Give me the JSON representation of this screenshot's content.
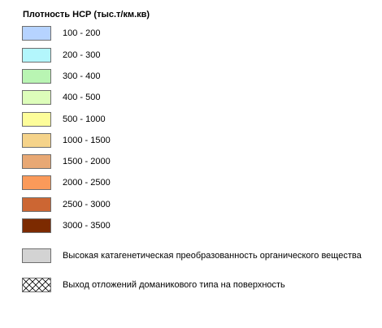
{
  "legend": {
    "title": "Плотность НСР (тыс.т/км.кв)",
    "density_classes": [
      {
        "label": "100 - 200",
        "color": "#b6d3ff"
      },
      {
        "label": "200 - 300",
        "color": "#b3f6fc"
      },
      {
        "label": "300 - 400",
        "color": "#b9f5b3"
      },
      {
        "label": "400 - 500",
        "color": "#ddfdba"
      },
      {
        "label": "500 - 1000",
        "color": "#fdfd9a"
      },
      {
        "label": "1000 - 1500",
        "color": "#f5d38a"
      },
      {
        "label": "1500 - 2000",
        "color": "#e8a874"
      },
      {
        "label": "2000 - 2500",
        "color": "#fa9a5a"
      },
      {
        "label": "2500 - 3000",
        "color": "#cc6633"
      },
      {
        "label": "3000 - 3500",
        "color": "#7c2a00"
      }
    ],
    "special_classes": [
      {
        "label": "Высокая катагенетическая преобразованность органического вещества",
        "color": "#d3d3d3",
        "pattern": "solid"
      },
      {
        "label": "Выход отложений доманикового типа на поверхность",
        "color": "#ffffff",
        "pattern": "crosshatch"
      }
    ]
  }
}
